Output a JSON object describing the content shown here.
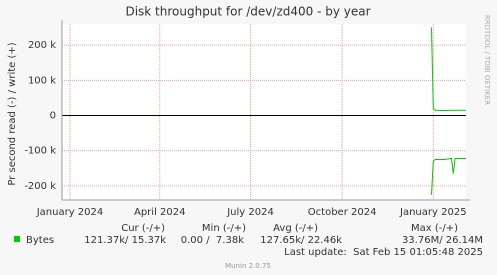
{
  "chart_data": {
    "type": "line",
    "title": "Disk throughput for /dev/zd400 - by year",
    "y_label": "Pr second read (-) / write (+)",
    "side_label": "RRDTOOL / TOBI OETIKER",
    "x": [
      2024.995,
      2025.0,
      2025.005,
      2025.01,
      2025.03,
      2025.05,
      2025.055,
      2025.06,
      2025.09
    ],
    "xlim": [
      2023.978,
      2025.09
    ],
    "xticks": [
      {
        "value": 2024.0,
        "label": "January 2024"
      },
      {
        "value": 2024.247,
        "label": "April 2024"
      },
      {
        "value": 2024.497,
        "label": "July 2024"
      },
      {
        "value": 2024.749,
        "label": "October 2024"
      },
      {
        "value": 2025.0,
        "label": "January 2025"
      }
    ],
    "ylim": [
      -240000,
      260000
    ],
    "yticks": [
      {
        "value": 200000,
        "label": "200 k"
      },
      {
        "value": 100000,
        "label": "100 k"
      },
      0,
      {
        "value": -100000,
        "label": "-100 k"
      },
      {
        "value": -200000,
        "label": "-200 k"
      }
    ],
    "grid": true,
    "series": [
      {
        "color": "#00cc00",
        "values": [
          250000,
          20000,
          15000,
          15000,
          14000,
          15000,
          15000,
          15000,
          15000
        ]
      },
      {
        "color": "#00cc00",
        "values": [
          -225000,
          -130000,
          -125000,
          -125000,
          -125000,
          -122000,
          -165000,
          -122000,
          -122000
        ]
      }
    ],
    "legend": {
      "headers": [
        "Cur (-/+)",
        "Min (-/+)",
        "Avg (-/+)",
        "Max (-/+)"
      ],
      "name": "Bytes",
      "color": "#00cc00",
      "stats": [
        "121.37k/ 15.37k",
        "0.00 /  7.38k",
        "127.65k/ 22.46k",
        "33.76M/ 26.14M"
      ]
    },
    "last_update": "Last update:  Sat Feb 15 01:05:48 2025",
    "footer": "Munin 2.0.75"
  }
}
